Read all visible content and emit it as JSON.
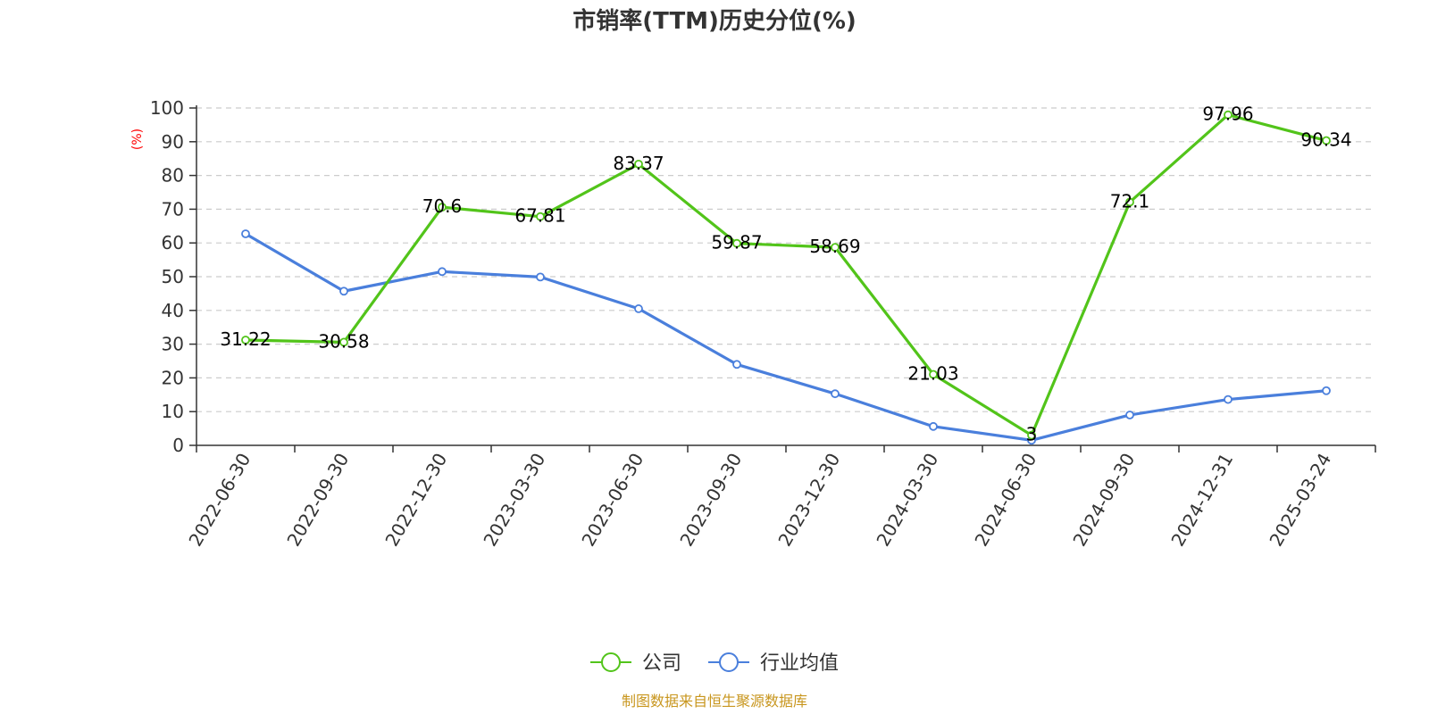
{
  "chart_data": {
    "type": "line",
    "title": "市销率(TTM)历史分位(%)",
    "ylabel": "(%)",
    "xlabel": "",
    "ylim": [
      0,
      100
    ],
    "yticks": [
      0,
      10,
      20,
      30,
      40,
      50,
      60,
      70,
      80,
      90,
      100
    ],
    "categories": [
      "2022-06-30",
      "2022-09-30",
      "2022-12-30",
      "2023-03-30",
      "2023-06-30",
      "2023-09-30",
      "2023-12-30",
      "2024-03-30",
      "2024-06-30",
      "2024-09-30",
      "2024-12-31",
      "2025-03-24"
    ],
    "series": [
      {
        "name": "公司",
        "color": "#52c41a",
        "values": [
          31.22,
          30.58,
          70.6,
          67.81,
          83.37,
          59.87,
          58.69,
          21.03,
          3,
          72.1,
          97.96,
          90.34
        ],
        "labels": [
          "31.22",
          "30.58",
          "70.6",
          "67.81",
          "83.37",
          "59.87",
          "58.69",
          "21.03",
          "3",
          "72.1",
          "97.96",
          "90.34"
        ]
      },
      {
        "name": "行业均值",
        "color": "#4a7fdc",
        "values": [
          62.7,
          45.7,
          51.5,
          49.9,
          40.5,
          24.0,
          15.3,
          5.6,
          1.5,
          9.0,
          13.6,
          16.2
        ]
      }
    ],
    "grid": "horizontal-dashed",
    "legend_position": "bottom-center",
    "source": "制图数据来自恒生聚源数据库"
  }
}
